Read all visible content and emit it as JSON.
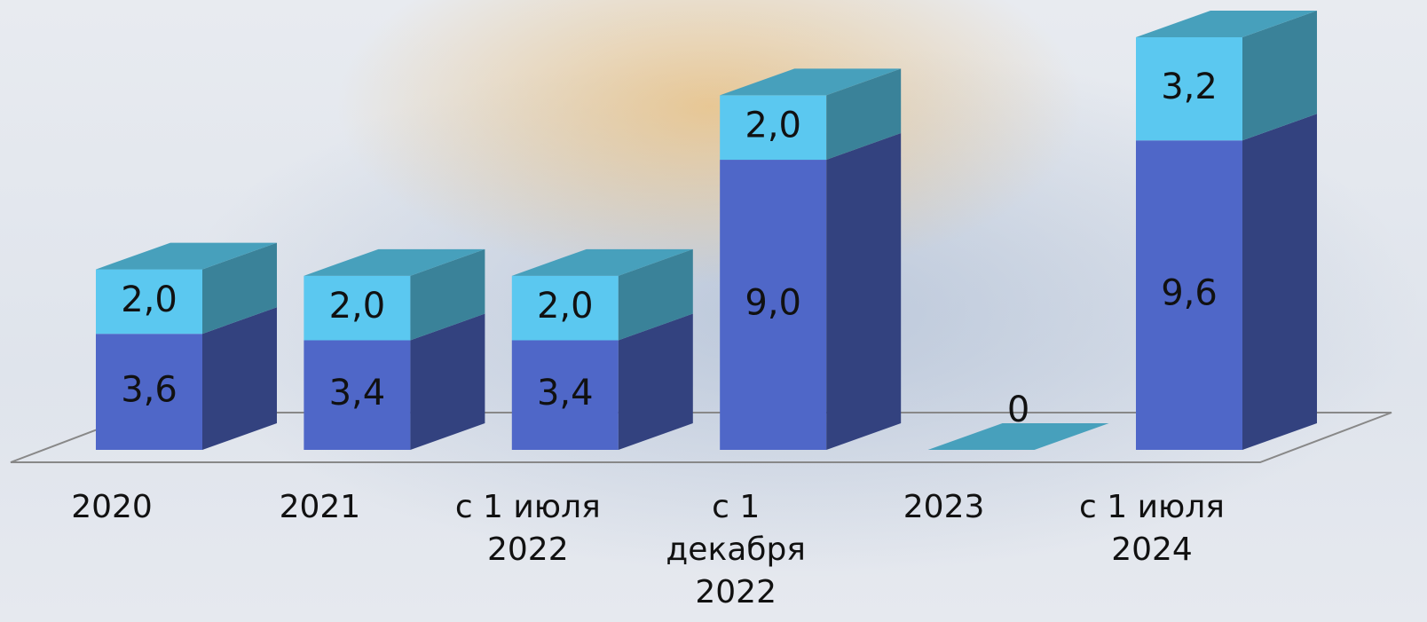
{
  "chart_data": {
    "type": "bar3d_stacked",
    "categories": [
      "2020",
      "2021",
      "с 1 июля\n2022",
      "с 1\nдекабря\n2022",
      "2023",
      "с 1 июля\n2024"
    ],
    "series": [
      {
        "color": "#4f67c8",
        "side_color": "#33427f",
        "values": [
          3.6,
          3.4,
          3.4,
          9.0,
          0,
          9.6
        ],
        "value_labels": [
          "3,6",
          "3,4",
          "3,4",
          "9,0",
          "0",
          "9,6"
        ]
      },
      {
        "color": "#5bc8f0",
        "side_color": "#3a8299",
        "top_color": "#47a0bc",
        "values": [
          2.0,
          2.0,
          2.0,
          2.0,
          null,
          3.2
        ],
        "value_labels": [
          "2,0",
          "2,0",
          "2,0",
          "2,0",
          null,
          "3,2"
        ]
      }
    ]
  }
}
